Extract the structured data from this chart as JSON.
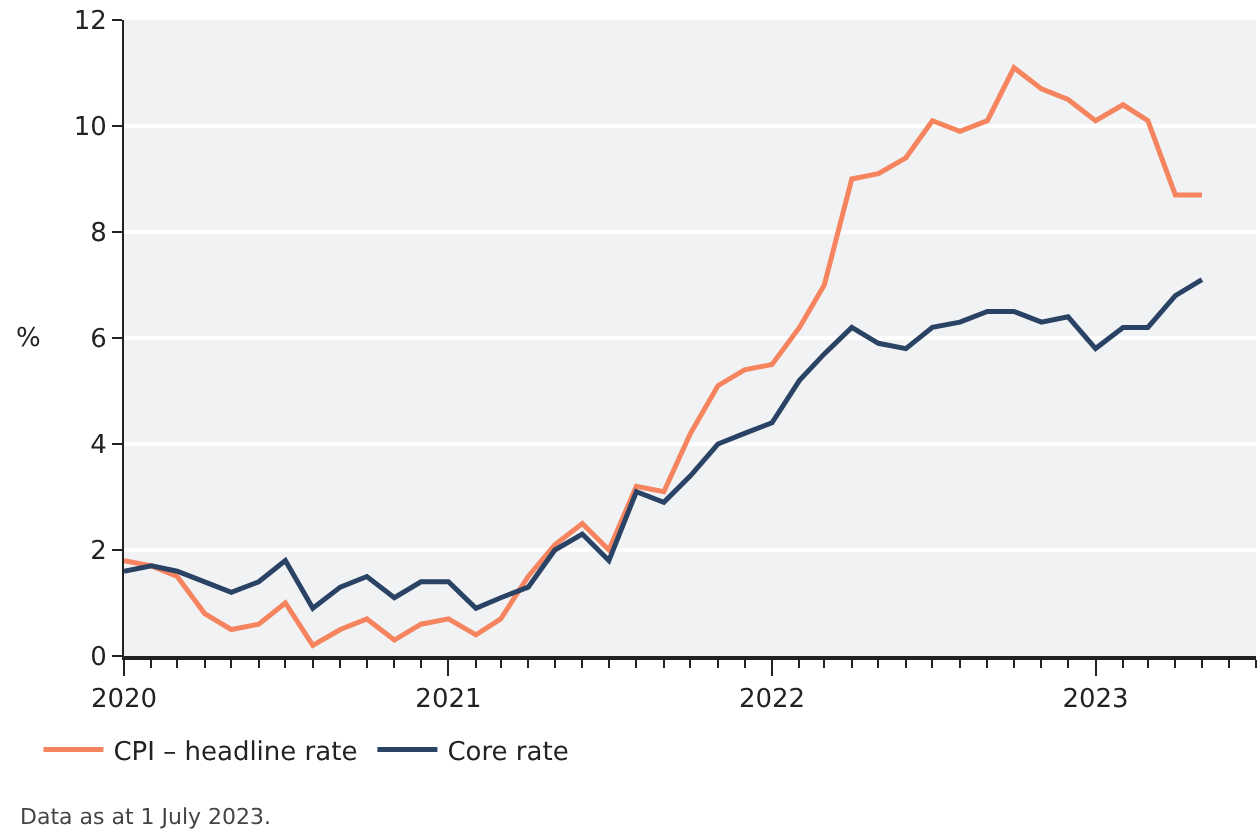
{
  "chart_data": {
    "type": "line",
    "ylabel": "%",
    "x": [
      "2020-01",
      "2020-02",
      "2020-03",
      "2020-04",
      "2020-05",
      "2020-06",
      "2020-07",
      "2020-08",
      "2020-09",
      "2020-10",
      "2020-11",
      "2020-12",
      "2021-01",
      "2021-02",
      "2021-03",
      "2021-04",
      "2021-05",
      "2021-06",
      "2021-07",
      "2021-08",
      "2021-09",
      "2021-10",
      "2021-11",
      "2021-12",
      "2022-01",
      "2022-02",
      "2022-03",
      "2022-04",
      "2022-05",
      "2022-06",
      "2022-07",
      "2022-08",
      "2022-09",
      "2022-10",
      "2022-11",
      "2022-12",
      "2023-01",
      "2023-02",
      "2023-03",
      "2023-04",
      "2023-05"
    ],
    "series": [
      {
        "name": "CPI – headline rate",
        "color": "#f5845f",
        "values": [
          1.8,
          1.7,
          1.5,
          0.8,
          0.5,
          0.6,
          1.0,
          0.2,
          0.5,
          0.7,
          0.3,
          0.6,
          0.7,
          0.4,
          0.7,
          1.5,
          2.1,
          2.5,
          2.0,
          3.2,
          3.1,
          4.2,
          5.1,
          5.4,
          5.5,
          6.2,
          7.0,
          9.0,
          9.1,
          9.4,
          10.1,
          9.9,
          10.1,
          11.1,
          10.7,
          10.5,
          10.1,
          10.4,
          10.1,
          8.7,
          8.7
        ]
      },
      {
        "name": "Core rate",
        "color": "#2a4365",
        "values": [
          1.6,
          1.7,
          1.6,
          1.4,
          1.2,
          1.4,
          1.8,
          0.9,
          1.3,
          1.5,
          1.1,
          1.4,
          1.4,
          0.9,
          1.1,
          1.3,
          2.0,
          2.3,
          1.8,
          3.1,
          2.9,
          3.4,
          4.0,
          4.2,
          4.4,
          5.2,
          5.7,
          6.2,
          5.9,
          5.8,
          6.2,
          6.3,
          6.5,
          6.5,
          6.3,
          6.4,
          5.8,
          6.2,
          6.2,
          6.8,
          7.1
        ]
      }
    ],
    "xlim": [
      "2020-01",
      "2023-07"
    ],
    "xticks": [
      {
        "value": "2020-01",
        "label": "2020"
      },
      {
        "value": "2021-01",
        "label": "2021"
      },
      {
        "value": "2022-01",
        "label": "2022"
      },
      {
        "value": "2023-01",
        "label": "2023"
      }
    ],
    "ylim": [
      0,
      12
    ],
    "yticks": [
      0,
      2,
      4,
      6,
      8,
      10,
      12
    ],
    "grid": "y",
    "legend": "bottom left",
    "marker": "none",
    "line_style": "solid",
    "annotations": [
      "Data as at 1 July 2023."
    ]
  }
}
